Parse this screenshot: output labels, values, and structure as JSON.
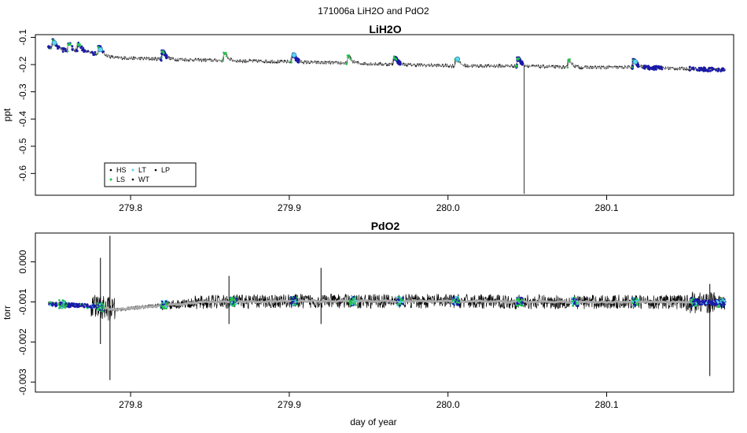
{
  "figure": {
    "title": "171006a   LiH2O and PdO2"
  },
  "chart_data": [
    {
      "type": "scatter",
      "title": "LiH2O",
      "xlabel": "",
      "ylabel": "ppt",
      "xlim": [
        279.74,
        280.18
      ],
      "ylim": [
        -0.68,
        -0.09
      ],
      "xticks": [
        279.8,
        279.9,
        280.0,
        280.1
      ],
      "xtick_labels": [
        "279.8",
        "279.9",
        "280.0",
        "280.1"
      ],
      "yticks": [
        -0.6,
        -0.5,
        -0.4,
        -0.3,
        -0.2,
        -0.1
      ],
      "ytick_labels": [
        "-0.6",
        "-0.5",
        "-0.4",
        "-0.3",
        "-0.2",
        "-0.1"
      ],
      "legend": {
        "position": "bottom-left",
        "entries": [
          {
            "label": "HS",
            "color": "#000000"
          },
          {
            "label": "LT",
            "color": "#5ad7f0"
          },
          {
            "label": "LP",
            "color": "#000000"
          },
          {
            "label": "LS",
            "color": "#22c24a"
          },
          {
            "label": "WT",
            "color": "#000000"
          }
        ]
      },
      "baseline": {
        "x": [
          279.748,
          279.76,
          279.775,
          279.79,
          279.82,
          279.86,
          279.9,
          279.94,
          279.97,
          280.006,
          280.045,
          280.077,
          280.118,
          280.15,
          280.175
        ],
        "y": [
          -0.135,
          -0.15,
          -0.155,
          -0.175,
          -0.18,
          -0.185,
          -0.19,
          -0.195,
          -0.2,
          -0.205,
          -0.205,
          -0.21,
          -0.21,
          -0.215,
          -0.22
        ]
      },
      "spike": {
        "x": 280.048,
        "y_top": -0.205,
        "y_bottom": -0.675
      },
      "bumps_x": [
        279.752,
        279.762,
        279.768,
        279.781,
        279.821,
        279.86,
        279.903,
        279.938,
        279.967,
        280.006,
        280.045,
        280.077,
        280.118
      ],
      "lt_points": [
        {
          "x": 279.752,
          "y": -0.12
        },
        {
          "x": 279.781,
          "y": -0.145
        },
        {
          "x": 279.903,
          "y": -0.165
        },
        {
          "x": 280.006,
          "y": -0.18
        },
        {
          "x": 280.118,
          "y": -0.19
        }
      ],
      "series_colors": {
        "main": "#000000",
        "mean": "#aaaaaa",
        "calib": "#1a1aa8",
        "ls": "#22c24a",
        "lt": "#5ad7f0"
      }
    },
    {
      "type": "scatter",
      "title": "PdO2",
      "xlabel": "day of year",
      "ylabel": "torr",
      "xlim": [
        279.74,
        280.18
      ],
      "ylim": [
        -0.00325,
        0.00072
      ],
      "xticks": [
        279.8,
        279.9,
        280.0,
        280.1
      ],
      "xtick_labels": [
        "279.8",
        "279.9",
        "280.0",
        "280.1"
      ],
      "yticks": [
        -0.003,
        -0.002,
        -0.001,
        0.0
      ],
      "ytick_labels": [
        "-0.003",
        "-0.002",
        "-0.001",
        "0.000"
      ],
      "baseline": {
        "x": [
          279.748,
          279.78,
          279.79,
          279.82,
          279.85,
          279.9,
          279.95,
          280.0,
          280.05,
          280.1,
          280.15,
          280.175
        ],
        "y": [
          -0.00105,
          -0.00112,
          -0.0012,
          -0.00108,
          -0.001,
          -0.00098,
          -0.00098,
          -0.00098,
          -0.001,
          -0.001,
          -0.001,
          -0.00102
        ]
      },
      "spikes": [
        {
          "x": 279.781,
          "top": 0.0001,
          "bottom": -0.00205
        },
        {
          "x": 279.787,
          "top": 0.00065,
          "bottom": -0.00295
        },
        {
          "x": 279.862,
          "top": -0.00035,
          "bottom": -0.00155
        },
        {
          "x": 279.92,
          "top": -0.00015,
          "bottom": -0.00155
        },
        {
          "x": 280.165,
          "top": -0.00055,
          "bottom": -0.00285
        }
      ],
      "calib_x": [
        279.757,
        279.781,
        279.821,
        279.865,
        279.903,
        279.94,
        279.97,
        280.005,
        280.045,
        280.08,
        280.118,
        280.155,
        280.172
      ],
      "series_colors": {
        "main": "#000000",
        "mean": "#aaaaaa",
        "calib": "#1a1aa8",
        "ls": "#22c24a",
        "lt": "#5ad7f0"
      }
    }
  ]
}
